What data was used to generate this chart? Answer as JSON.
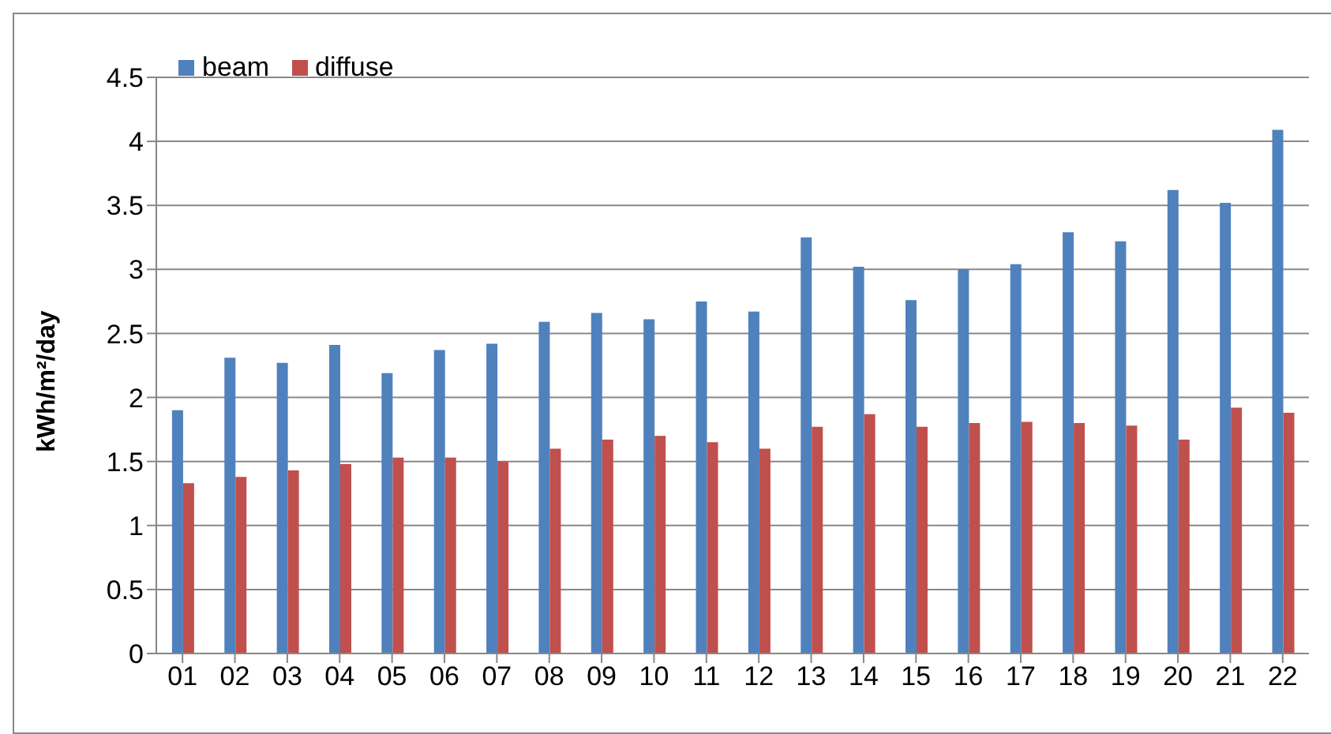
{
  "chart_data": {
    "type": "bar",
    "ylabel": "kWh/m²/day",
    "categories": [
      "01",
      "02",
      "03",
      "04",
      "05",
      "06",
      "07",
      "08",
      "09",
      "10",
      "11",
      "12",
      "13",
      "14",
      "15",
      "16",
      "17",
      "18",
      "19",
      "20",
      "21",
      "22"
    ],
    "series": [
      {
        "name": "beam",
        "color": "#4f81bd",
        "values": [
          1.9,
          2.31,
          2.27,
          2.41,
          2.19,
          2.37,
          2.42,
          2.59,
          2.66,
          2.61,
          2.75,
          2.67,
          3.25,
          3.02,
          2.76,
          3.0,
          3.04,
          3.29,
          3.22,
          3.62,
          3.52,
          4.09
        ]
      },
      {
        "name": "diffuse",
        "color": "#c0504d",
        "values": [
          1.33,
          1.38,
          1.43,
          1.48,
          1.53,
          1.53,
          1.5,
          1.6,
          1.67,
          1.7,
          1.65,
          1.6,
          1.77,
          1.87,
          1.77,
          1.8,
          1.81,
          1.8,
          1.78,
          1.67,
          1.92,
          1.88
        ]
      }
    ],
    "ylim": [
      0,
      4.5
    ],
    "yticks": [
      0,
      0.5,
      1,
      1.5,
      2,
      2.5,
      3,
      3.5,
      4,
      4.5
    ],
    "grid": "y",
    "legend": "top left"
  }
}
